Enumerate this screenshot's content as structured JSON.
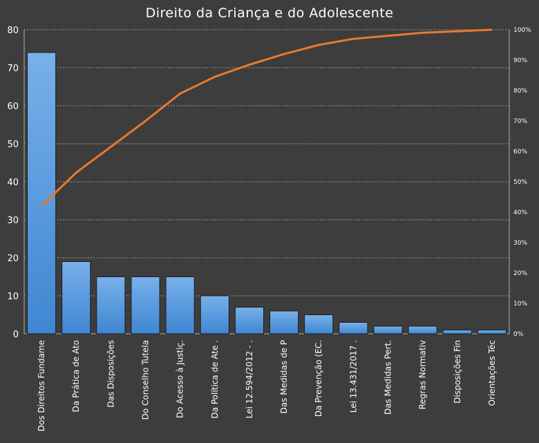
{
  "chart_data": {
    "type": "bar",
    "title": "Direito da Criança e do Adolescente",
    "categories": [
      "Dos Direitos Fundame",
      "Da Prática de Ato",
      "Das Disposições",
      "Do Conselho Tutela",
      "Do Acesso à Justiç.",
      "Da Política de Ate .",
      "Lei 12.594/2012 - .",
      "Das Medidas de P",
      "Da Prevenção (EC.",
      "Lei 13.431/2017  .",
      "Das Medidas Pert.",
      "Regras Normativ",
      "Disposições Fin",
      "Orientações Téc"
    ],
    "series": [
      {
        "type": "bar",
        "values": [
          74,
          19,
          15,
          15,
          15,
          10,
          7,
          6,
          5,
          3,
          2,
          2,
          1,
          1
        ],
        "axis": "left"
      },
      {
        "type": "line",
        "values": [
          42,
          53,
          61.5,
          70,
          79,
          84.5,
          88.5,
          92,
          95,
          97,
          98,
          99,
          99.5,
          100
        ],
        "axis": "right"
      }
    ],
    "ylim": [
      0,
      80
    ],
    "y_ticks": [
      0,
      10,
      20,
      30,
      40,
      50,
      60,
      70,
      80
    ],
    "y2lim": [
      0,
      100
    ],
    "y2_ticks": [
      "0%",
      "10%",
      "20%",
      "30%",
      "40%",
      "50%",
      "60%",
      "70%",
      "80%",
      "90%",
      "100%"
    ],
    "grid": true,
    "legend": "none",
    "colors": {
      "bar": "#4a8fd6",
      "bar_top": "#6fa9e6",
      "line": "#e87a2e",
      "grid": "#9a9a9a",
      "background": "#3d3d3d"
    }
  }
}
